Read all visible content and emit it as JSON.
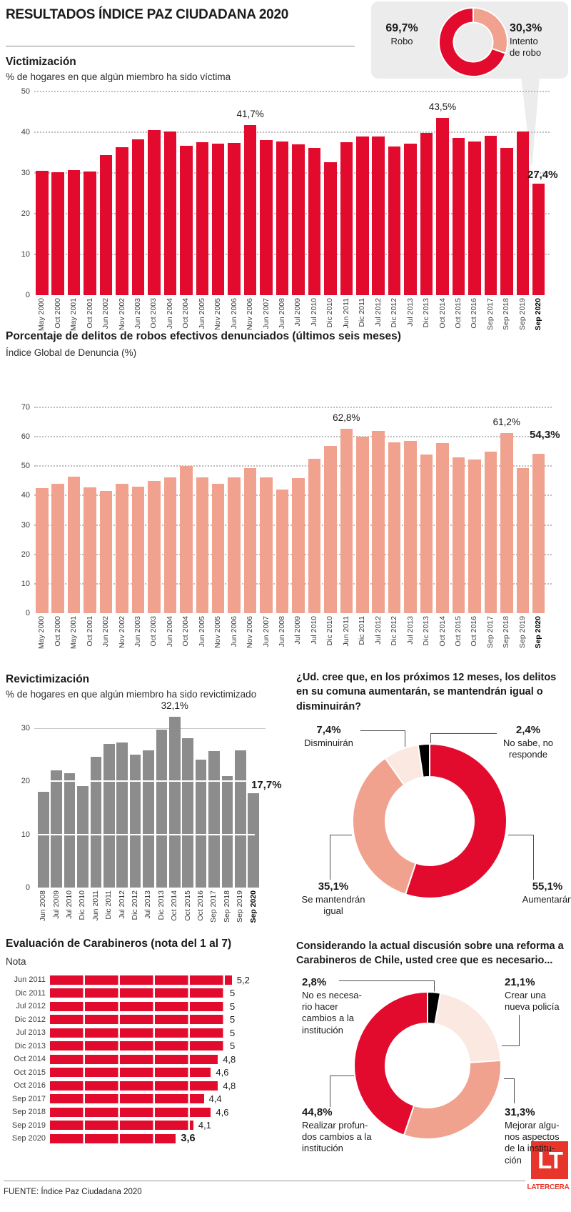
{
  "page": {
    "title": "RESULTADOS ÍNDICE PAZ CIUDADANA 2020",
    "footer": {
      "source": "FUENTE: Índice Paz Ciudadana 2020",
      "logo_initials": "LT",
      "logo_name": "LATERCERA"
    },
    "colors": {
      "red": "#e20b2e",
      "salmon": "#f0a28f",
      "pink": "#fae8e1",
      "black": "#000000",
      "gray_bar": "#8c8c8c",
      "box_gray": "#ececec",
      "logo_red": "#e8352b"
    }
  },
  "chart_data": [
    {
      "id": "robo_tipo",
      "type": "pie",
      "title": "",
      "slices": [
        {
          "label": "Intento de robo",
          "value": 30.3,
          "display": "30,3%",
          "color": "#f0a28f",
          "lines": [
            "Intento",
            "de robo"
          ]
        },
        {
          "label": "Robo",
          "value": 69.7,
          "display": "69,7%",
          "color": "#e20b2e",
          "lines": [
            "Robo"
          ]
        }
      ]
    },
    {
      "id": "victimizacion",
      "type": "bar",
      "title": "Victimización",
      "subtitle": "% de hogares en que algún miembro ha sido víctima",
      "ylim": [
        0,
        50
      ],
      "yticks": [
        50,
        40,
        30,
        20,
        10,
        0
      ],
      "bar_color": "#e20b2e",
      "categories": [
        "May 2000",
        "Oct 2000",
        "May 2001",
        "Oct 2001",
        "Jun 2002",
        "Nov 2002",
        "Jun 2003",
        "Oct 2003",
        "Jun 2004",
        "Oct 2004",
        "Jun 2005",
        "Nov 2005",
        "Jun 2006",
        "Nov 2006",
        "Jun 2007",
        "Jun 2008",
        "Jul 2009",
        "Jul 2010",
        "Dic 2010",
        "Jun 2011",
        "Dic 2011",
        "Jul 2012",
        "Dic 2012",
        "Jul 2013",
        "Dic 2013",
        "Oct 2014",
        "Oct 2015",
        "Oct 2016",
        "Sep 2017",
        "Sep 2018",
        "Sep 2019",
        "Sep 2020"
      ],
      "values": [
        30.5,
        30.2,
        30.7,
        30.3,
        34.4,
        36.4,
        38.2,
        40.6,
        40.2,
        36.7,
        37.6,
        37.2,
        37.4,
        41.7,
        38.0,
        37.8,
        37.1,
        36.1,
        32.6,
        37.5,
        38.9,
        39.0,
        36.5,
        37.2,
        39.9,
        43.5,
        38.6,
        37.7,
        39.2,
        36.1,
        40.2,
        27.4
      ],
      "annotations": [
        {
          "i": 13,
          "text": "41,7%"
        },
        {
          "i": 25,
          "text": "43,5%"
        },
        {
          "i": 31,
          "text": "27,4%",
          "bold": true
        }
      ]
    },
    {
      "id": "denuncia",
      "type": "bar",
      "title": "Porcentaje de delitos de robos efectivos denunciados (últimos seis meses)",
      "subtitle": "Índice Global de Denuncia (%)",
      "ylim": [
        0,
        70
      ],
      "yticks": [
        70,
        60,
        50,
        40,
        30,
        20,
        10,
        0
      ],
      "bar_color": "#f0a28f",
      "categories": [
        "May 2000",
        "Oct 2000",
        "May 2001",
        "Oct 2001",
        "Jun 2002",
        "Nov 2002",
        "Jun 2003",
        "Oct 2003",
        "Jun 2004",
        "Oct 2004",
        "Jun 2005",
        "Nov 2005",
        "Jun 2006",
        "Nov 2006",
        "Jun 2007",
        "Jun 2008",
        "Jul 2009",
        "Jul 2010",
        "Dic 2010",
        "Jun 2011",
        "Dic 2011",
        "Jul 2012",
        "Dic 2012",
        "Jul 2013",
        "Dic 2013",
        "Oct 2014",
        "Oct 2015",
        "Oct 2016",
        "Sep 2017",
        "Sep 2018",
        "Sep 2019",
        "Sep 2020"
      ],
      "values": [
        42.5,
        44.0,
        46.5,
        42.8,
        41.5,
        44.0,
        43.0,
        45.0,
        46.3,
        50.0,
        46.3,
        44.0,
        46.3,
        49.3,
        46.3,
        42.0,
        46.0,
        52.5,
        57.0,
        62.8,
        60.0,
        62.0,
        58.0,
        58.5,
        54.0,
        57.8,
        53.0,
        52.3,
        55.0,
        61.2,
        49.3,
        54.3
      ],
      "annotations": [
        {
          "i": 19,
          "text": "62,8%"
        },
        {
          "i": 29,
          "text": "61,2%"
        },
        {
          "i": 31,
          "text": "54,3%",
          "bold": true
        }
      ]
    },
    {
      "id": "revictimizacion",
      "type": "bar",
      "title": "Revictimización",
      "subtitle": "% de hogares en que algún miembro ha sido revictimizado",
      "ylim": [
        0,
        30
      ],
      "yticks": [
        30,
        20,
        10,
        0
      ],
      "bar_color": "#8c8c8c",
      "categories": [
        "Jun 2008",
        "Jul 2009",
        "Jul 2010",
        "Dic 2010",
        "Jun 2011",
        "Dic 2011",
        "Jul 2012",
        "Dic 2012",
        "Jul 2013",
        "Dic 2013",
        "Oct 2014",
        "Oct 2015",
        "Oct 2016",
        "Sep 2017",
        "Sep 2018",
        "Sep 2019",
        "Sep 2020"
      ],
      "values": [
        18.0,
        22.0,
        21.5,
        19.0,
        24.5,
        27.0,
        27.2,
        25.0,
        25.8,
        29.7,
        32.1,
        28.0,
        24.0,
        25.7,
        21.0,
        25.8,
        17.7
      ],
      "annotations": [
        {
          "i": 10,
          "text": "32,1%"
        },
        {
          "i": 16,
          "text": "17,7%",
          "bold": true
        }
      ]
    },
    {
      "id": "expectativa",
      "type": "pie",
      "title": "¿Ud. cree que, en los próximos 12 meses, los delitos en su comuna aumentarán, se mantendrán igual o disminuirán?",
      "slices": [
        {
          "label": "Aumentarán",
          "value": 55.1,
          "display": "55,1%",
          "color": "#e20b2e",
          "lines": [
            "Aumentarán"
          ]
        },
        {
          "label": "Se mantendrán igual",
          "value": 35.1,
          "display": "35,1%",
          "color": "#f0a28f",
          "lines": [
            "Se mantendrán",
            "igual"
          ]
        },
        {
          "label": "Disminuirán",
          "value": 7.4,
          "display": "7,4%",
          "color": "#fae8e1",
          "lines": [
            "Disminuirán"
          ]
        },
        {
          "label": "No sabe, no responde",
          "value": 2.4,
          "display": "2,4%",
          "color": "#000000",
          "lines": [
            "No sabe, no",
            "responde"
          ]
        }
      ]
    },
    {
      "id": "carabineros",
      "type": "bar",
      "orientation": "horizontal",
      "title": "Evaluación de Carabineros (nota del 1 al 7)",
      "subtitle": "Nota",
      "xlim": [
        0,
        7
      ],
      "bar_color": "#e20b2e",
      "categories": [
        "Jun 2011",
        "Dic 2011",
        "Jul 2012",
        "Dic 2012",
        "Jul 2013",
        "Dic 2013",
        "Oct 2014",
        "Oct 2015",
        "Oct 2016",
        "Sep 2017",
        "Sep 2018",
        "Sep 2019",
        "Sep 2020"
      ],
      "values": [
        5.2,
        5,
        5,
        5,
        5,
        5,
        4.8,
        4.6,
        4.8,
        4.4,
        4.6,
        4.1,
        3.6
      ],
      "display_values": [
        "5,2",
        "5",
        "5",
        "5",
        "5",
        "5",
        "4,8",
        "4,6",
        "4,8",
        "4,4",
        "4,6",
        "4,1",
        "3,6"
      ]
    },
    {
      "id": "reforma",
      "type": "pie",
      "title": "Considerando la actual discusión sobre una reforma a Carabineros de Chile, usted cree que es necesario...",
      "slices": [
        {
          "label": "No es necesario hacer cambios a la institución",
          "value": 2.8,
          "display": "2,8%",
          "color": "#000000",
          "lines": [
            "No es necesa-",
            "rio hacer",
            "cambios a la",
            "institución"
          ]
        },
        {
          "label": "Crear una nueva policía",
          "value": 21.1,
          "display": "21,1%",
          "color": "#fae8e1",
          "lines": [
            "Crear una",
            "nueva policía"
          ]
        },
        {
          "label": "Mejorar algunos aspectos de la institución",
          "value": 31.3,
          "display": "31,3%",
          "color": "#f0a28f",
          "lines": [
            "Mejorar algu-",
            "nos aspectos",
            "de la institu-",
            "ción"
          ]
        },
        {
          "label": "Realizar profundos cambios a la institución",
          "value": 44.8,
          "display": "44,8%",
          "color": "#e20b2e",
          "lines": [
            "Realizar profun-",
            "dos cambios a la",
            "institución"
          ]
        }
      ]
    }
  ]
}
